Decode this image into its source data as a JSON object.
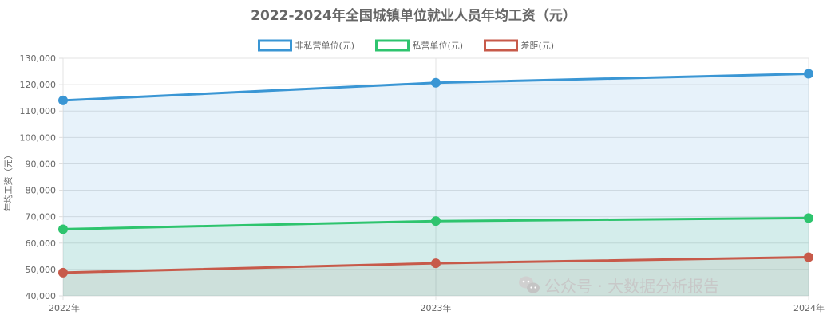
{
  "chart_data": {
    "type": "line",
    "title": "2022-2024年全国城镇单位就业人员年均工资（元）",
    "ylabel": "年均工资（元）",
    "xlabel": "",
    "categories": [
      "2022年",
      "2023年",
      "2024年"
    ],
    "ylim": [
      40000,
      130000
    ],
    "yticks": [
      "40,000",
      "50,000",
      "60,000",
      "70,000",
      "80,000",
      "90,000",
      "100,000",
      "110,000",
      "120,000",
      "130,000"
    ],
    "yticks_values": [
      40000,
      50000,
      60000,
      70000,
      80000,
      90000,
      100000,
      110000,
      120000,
      130000
    ],
    "grid": true,
    "legend_position": "top",
    "series": [
      {
        "name": "非私营单位(元)",
        "values": [
          114029,
          120698,
          124110
        ],
        "color": "#3a96d4",
        "fill": "rgba(58,150,212,0.12)"
      },
      {
        "name": "私营单位(元)",
        "values": [
          65237,
          68340,
          69476
        ],
        "color": "#2ec46e",
        "fill": "rgba(46,196,110,0.10)"
      },
      {
        "name": "差距(元)",
        "values": [
          48792,
          52358,
          54634
        ],
        "color": "#c75a4a",
        "fill": "rgba(160,130,110,0.12)"
      }
    ]
  },
  "watermark": {
    "text": "公众号 · 大数据分析报告",
    "icon": "wechat-icon"
  }
}
